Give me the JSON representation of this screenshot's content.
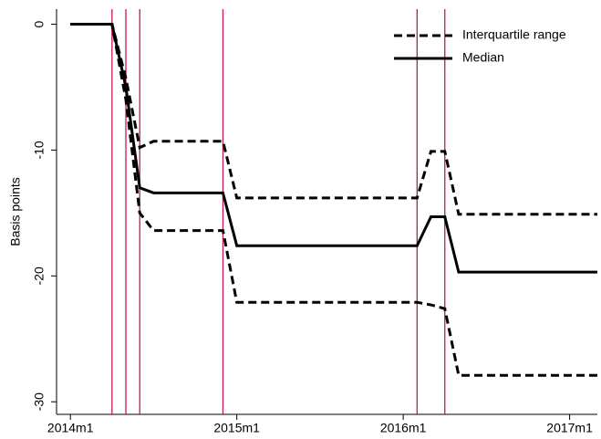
{
  "chart_data": {
    "type": "line",
    "ylabel": "Basis points",
    "x": [
      "2014m1",
      "2014m4",
      "2014m5",
      "2014m6",
      "2014m7",
      "2014m12",
      "2015m1",
      "2016m2",
      "2016m3",
      "2016m4",
      "2016m5",
      "2017m3"
    ],
    "series": [
      {
        "name": "Interquartile range",
        "color": "#000000",
        "dash": true,
        "upper": [
          0,
          0,
          -4.3,
          -9.8,
          -9.3,
          -9.3,
          -13.8,
          -13.8,
          -10.1,
          -10.1,
          -15.1,
          -15.1
        ],
        "lower": [
          0,
          0,
          -6,
          -15,
          -16.4,
          -16.4,
          -22.1,
          -22.1,
          -22.3,
          -22.6,
          -27.9,
          -27.9
        ]
      },
      {
        "name": "Median",
        "color": "#000000",
        "dash": false,
        "values": [
          0,
          0,
          -5,
          -13,
          -13.4,
          -13.4,
          -17.6,
          -17.6,
          -15.3,
          -15.3,
          -19.7,
          -19.7
        ]
      }
    ],
    "vlines": [
      "2014m4",
      "2014m5",
      "2014m6",
      "2014m12",
      "2016m2",
      "2016m4"
    ],
    "vline_color": "#c2185b",
    "xlim": [
      "2013m12",
      "2017m3"
    ],
    "xticks": [
      "2014m1",
      "2015m1",
      "2016m1",
      "2017m1"
    ],
    "ylim": [
      -31,
      1.2
    ],
    "yticks": [
      0,
      -10,
      -20,
      -30
    ],
    "legend": "top-right"
  }
}
